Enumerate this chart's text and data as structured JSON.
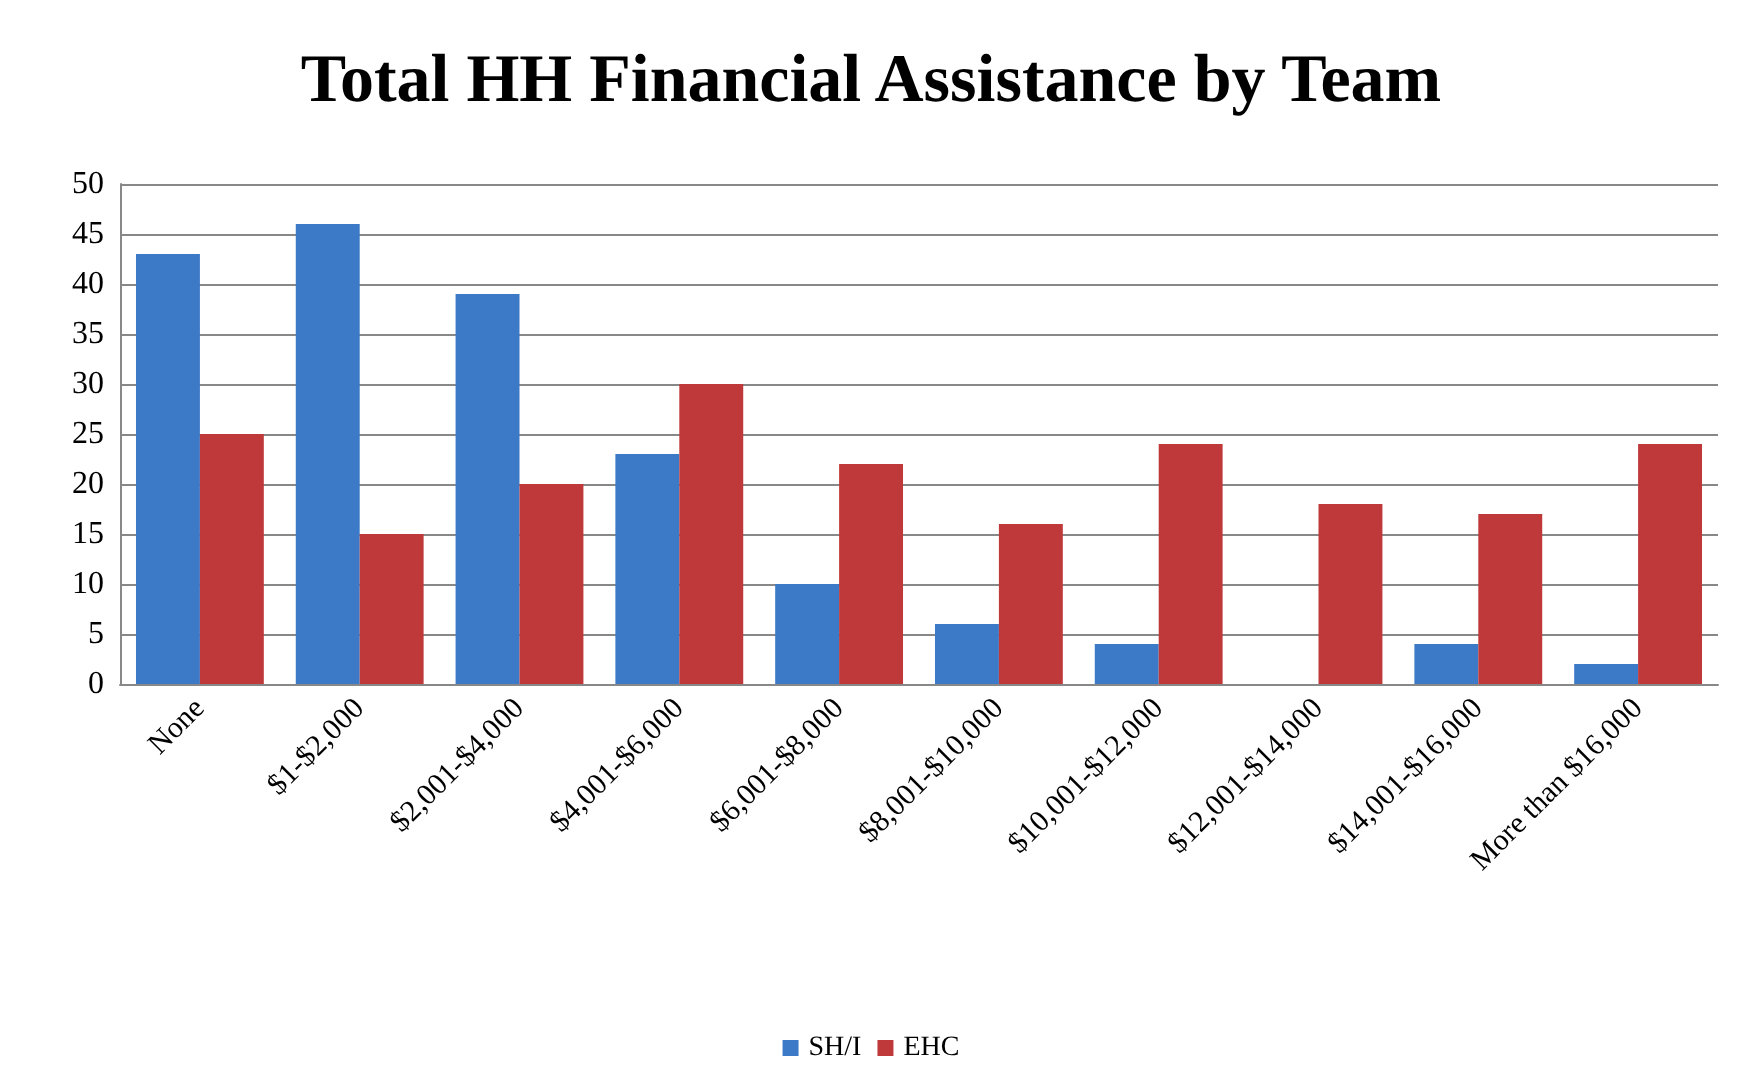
{
  "chart_data": {
    "type": "bar",
    "title": "Total HH Financial Assistance by Team",
    "categories": [
      "None",
      "$1-$2,000",
      "$2,001-$4,000",
      "$4,001-$6,000",
      "$6,001-$8,000",
      "$8,001-$10,000",
      "$10,001-$12,000",
      "$12,001-$14,000",
      "$14,001-$16,000",
      "More than $16,000"
    ],
    "series": [
      {
        "name": "SH/I",
        "color": "#3c79c6",
        "values": [
          43,
          46,
          39,
          23,
          10,
          6,
          4,
          0,
          4,
          2
        ]
      },
      {
        "name": "EHC",
        "color": "#c0393a",
        "values": [
          25,
          15,
          20,
          30,
          22,
          16,
          24,
          18,
          17,
          24
        ]
      }
    ],
    "ylim": [
      0,
      50
    ],
    "yticks": [
      0,
      5,
      10,
      15,
      20,
      25,
      30,
      35,
      40,
      45,
      50
    ],
    "grid": "y",
    "legend": "bottom"
  }
}
